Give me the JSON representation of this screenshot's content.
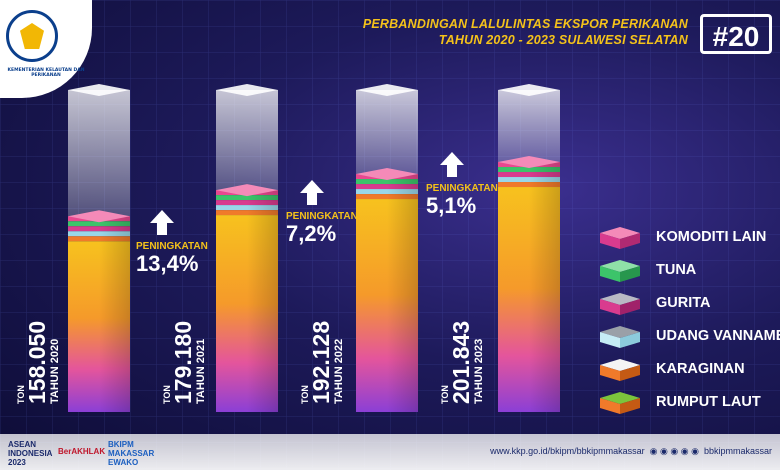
{
  "header": {
    "title_line1": "PERBANDINGAN LALULINTAS EKSPOR PERIKANAN",
    "title_line2": "TAHUN 2020 - 2023 SULAWESI SELATAN",
    "hashtag": "#20",
    "logo_text": "KEMENTERIAN KELAUTAN DAN PERIKANAN"
  },
  "chart_data": {
    "type": "bar",
    "title": "PERBANDINGAN LALULINTAS EKSPOR PERIKANAN TAHUN 2020 - 2023 SULAWESI SELATAN",
    "categories": [
      "TAHUN 2020",
      "TAHUN 2021",
      "TAHUN 2022",
      "TAHUN 2023"
    ],
    "values": [
      158050,
      179180,
      192128,
      201843
    ],
    "value_labels": [
      "158.050",
      "179.180",
      "192.128",
      "201.843"
    ],
    "unit": "TON",
    "increases": [
      {
        "label": "PENINGKATAN",
        "value": "13,4%"
      },
      {
        "label": "PENINGKATAN",
        "value": "7,2%"
      },
      {
        "label": "PENINGKATAN",
        "value": "5,1%"
      }
    ],
    "stack_legend": [
      "KOMODITI LAIN",
      "TUNA",
      "GURITA",
      "UDANG VANNAMEI",
      "KARAGINAN",
      "RUMPUT LAUT"
    ],
    "ylim": [
      0,
      260000
    ]
  },
  "colors": {
    "komoditi_lain": "#e8488f",
    "tuna": "#3cc46a",
    "gurita": "#d93b8e",
    "udang_vannamei": "#9ad7e8",
    "karaginan": "#f07a2a",
    "rumput_laut": "#f5b21c",
    "accent": "#f4c21a"
  },
  "footer": {
    "logo1": "ASEAN INDONESIA 2023",
    "logo2": "BerAKHLAK",
    "logo3": "BKIPM MAKASSAR EWAKO",
    "website": "www.kkp.go.id/bkipm/bbkipmmakassar",
    "handle": "bbkipmmakassar"
  }
}
